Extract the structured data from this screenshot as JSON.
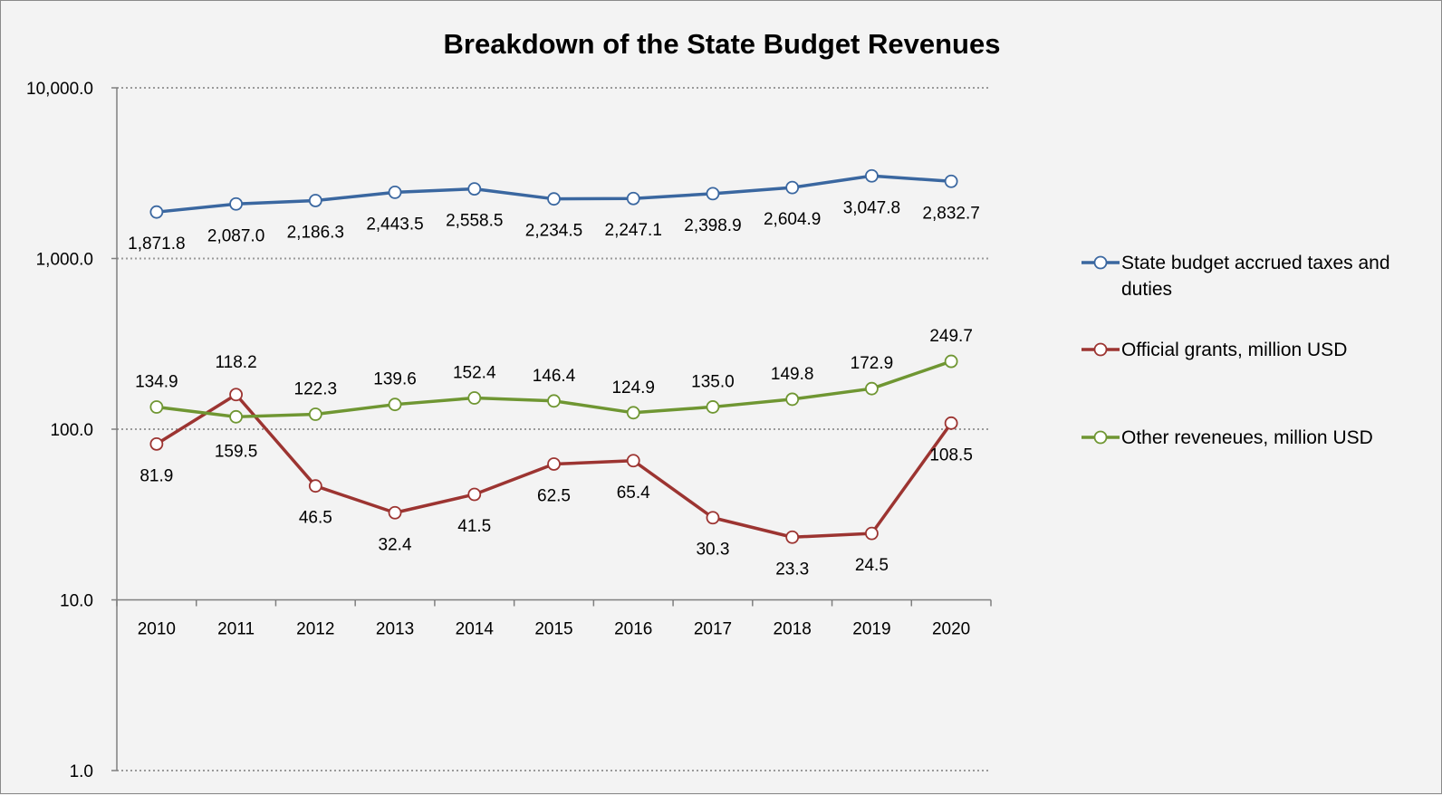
{
  "chart_data": {
    "type": "line",
    "title": "Breakdown of the State Budget Revenues",
    "xlabel": "",
    "ylabel": "",
    "y_scale": "log",
    "ylim": [
      1,
      10000
    ],
    "y_tick_labels": [
      "1.0",
      "10.0",
      "100.0",
      "1,000.0",
      "10,000.0"
    ],
    "grid": "horizontal dotted",
    "legend_position": "right",
    "categories": [
      "2010",
      "2011",
      "2012",
      "2013",
      "2014",
      "2015",
      "2016",
      "2017",
      "2018",
      "2019",
      "2020"
    ],
    "series": [
      {
        "name": "State budget accrued taxes and duties",
        "name_lines": [
          "State budget accrued taxes and",
          "duties"
        ],
        "color": "#3a67a0",
        "values": [
          1871.8,
          2087.0,
          2186.3,
          2443.5,
          2558.5,
          2234.5,
          2247.1,
          2398.9,
          2604.9,
          3047.8,
          2832.7
        ],
        "labels": [
          "1,871.8",
          "2,087.0",
          "2,186.3",
          "2,443.5",
          "2,558.5",
          "2,234.5",
          "2,247.1",
          "2,398.9",
          "2,604.9",
          "3,047.8",
          "2,832.7"
        ]
      },
      {
        "name": "Official grants, million USD",
        "name_lines": [
          "Official grants, million USD"
        ],
        "color": "#9c3431",
        "values": [
          81.9,
          159.5,
          46.5,
          32.4,
          41.5,
          62.5,
          65.4,
          30.3,
          23.3,
          24.5,
          108.5
        ],
        "labels": [
          "81.9",
          "159.5",
          "46.5",
          "32.4",
          "41.5",
          "62.5",
          "65.4",
          "30.3",
          "23.3",
          "24.5",
          "108.5"
        ]
      },
      {
        "name": "Other reveneues, million USD",
        "name_lines": [
          "Other reveneues, million USD"
        ],
        "color": "#6f9632",
        "values": [
          134.9,
          118.2,
          122.3,
          139.6,
          152.4,
          146.4,
          124.9,
          135.0,
          149.8,
          172.9,
          249.7
        ],
        "labels": [
          "134.9",
          "118.2",
          "122.3",
          "139.6",
          "152.4",
          "146.4",
          "124.9",
          "135.0",
          "149.8",
          "172.9",
          "249.7"
        ]
      }
    ]
  }
}
